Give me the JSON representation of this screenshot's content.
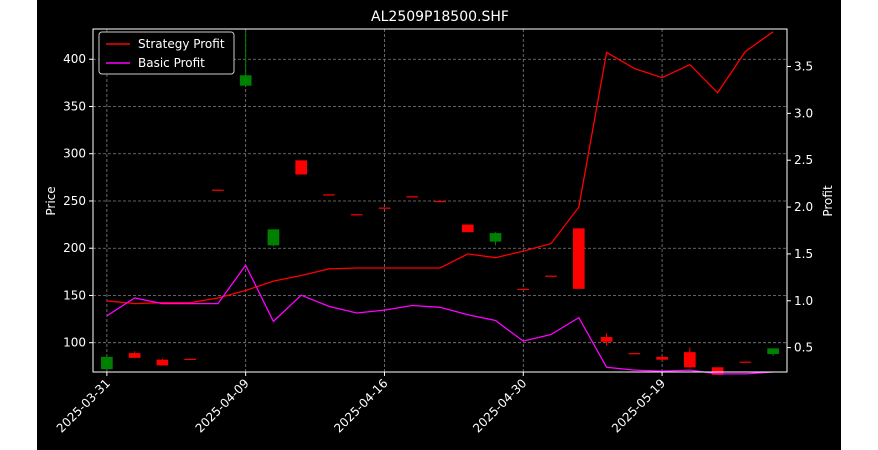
{
  "chart_data": {
    "type": "candlestick_with_lines",
    "title": "AL2509P18500.SHF",
    "xlabel": "",
    "ylabel_left": "Price",
    "ylabel_right": "Profit",
    "ylim_left": [
      69,
      432
    ],
    "ylim_right": [
      0.24,
      3.9
    ],
    "yticks_left": [
      100,
      150,
      200,
      250,
      300,
      350,
      400
    ],
    "yticks_right": [
      0.5,
      1.0,
      1.5,
      2.0,
      2.5,
      3.0,
      3.5
    ],
    "xticks": [
      {
        "index": 0,
        "label": "2025-03-31"
      },
      {
        "index": 5,
        "label": "2025-04-09"
      },
      {
        "index": 10,
        "label": "2025-04-16"
      },
      {
        "index": 15,
        "label": "2025-04-30"
      },
      {
        "index": 20,
        "label": "2025-05-19"
      }
    ],
    "grid": true,
    "legend_position": "upper-left",
    "colors": {
      "background": "#000000",
      "up": "#008000",
      "down": "#ff0000",
      "strategy": "#ff0000",
      "basic": "#ff00ff",
      "grid": "#7f7f7f",
      "text": "#ffffff"
    },
    "candles": [
      {
        "i": 0,
        "open": 72,
        "high": 85,
        "low": 72,
        "close": 85
      },
      {
        "i": 1,
        "open": 89,
        "high": 91,
        "low": 84,
        "close": 84
      },
      {
        "i": 2,
        "open": 82,
        "high": 83,
        "low": 76,
        "close": 76
      },
      {
        "i": 3,
        "open": 83,
        "high": 83,
        "low": 82,
        "close": 82
      },
      {
        "i": 4,
        "open": 262,
        "high": 262,
        "low": 261,
        "close": 261
      },
      {
        "i": 5,
        "open": 372,
        "high": 430,
        "low": 372,
        "close": 383
      },
      {
        "i": 6,
        "open": 203,
        "high": 220,
        "low": 202,
        "close": 220
      },
      {
        "i": 7,
        "open": 293,
        "high": 293,
        "low": 278,
        "close": 278
      },
      {
        "i": 8,
        "open": 257,
        "high": 257,
        "low": 256,
        "close": 256
      },
      {
        "i": 9,
        "open": 236,
        "high": 236,
        "low": 235,
        "close": 235
      },
      {
        "i": 10,
        "open": 243,
        "high": 243,
        "low": 242,
        "close": 242
      },
      {
        "i": 11,
        "open": 255,
        "high": 255,
        "low": 254,
        "close": 254
      },
      {
        "i": 12,
        "open": 250,
        "high": 250,
        "low": 249,
        "close": 249
      },
      {
        "i": 13,
        "open": 225,
        "high": 225,
        "low": 217,
        "close": 217
      },
      {
        "i": 14,
        "open": 207,
        "high": 217,
        "low": 203,
        "close": 216
      },
      {
        "i": 15,
        "open": 157,
        "high": 157,
        "low": 156,
        "close": 156
      },
      {
        "i": 16,
        "open": 171,
        "high": 171,
        "low": 170,
        "close": 170
      },
      {
        "i": 17,
        "open": 221,
        "high": 221,
        "low": 157,
        "close": 157
      },
      {
        "i": 18,
        "open": 106,
        "high": 110,
        "low": 97,
        "close": 101
      },
      {
        "i": 19,
        "open": 89,
        "high": 89,
        "low": 88,
        "close": 88
      },
      {
        "i": 20,
        "open": 85,
        "high": 85,
        "low": 82,
        "close": 82
      },
      {
        "i": 21,
        "open": 90,
        "high": 95,
        "low": 73,
        "close": 74
      },
      {
        "i": 22,
        "open": 74,
        "high": 74,
        "low": 66,
        "close": 66
      },
      {
        "i": 23,
        "open": 80,
        "high": 80,
        "low": 79,
        "close": 79
      },
      {
        "i": 24,
        "open": 88,
        "high": 94,
        "low": 86,
        "close": 94
      }
    ],
    "series": [
      {
        "name": "Strategy Profit",
        "color": "#ff0000",
        "values": [
          1.0,
          0.97,
          0.98,
          0.98,
          1.03,
          1.11,
          1.21,
          1.27,
          1.34,
          1.35,
          1.35,
          1.35,
          1.35,
          1.5,
          1.46,
          1.53,
          1.61,
          2.0,
          3.65,
          3.48,
          3.38,
          3.52,
          3.22,
          3.66,
          3.87
        ]
      },
      {
        "name": "Basic Profit",
        "color": "#ff00ff",
        "values": [
          0.84,
          1.03,
          0.97,
          0.97,
          0.97,
          1.38,
          0.78,
          1.06,
          0.94,
          0.87,
          0.9,
          0.95,
          0.93,
          0.85,
          0.79,
          0.57,
          0.64,
          0.82,
          0.29,
          0.26,
          0.25,
          0.26,
          0.22,
          0.22,
          0.24
        ]
      }
    ]
  }
}
